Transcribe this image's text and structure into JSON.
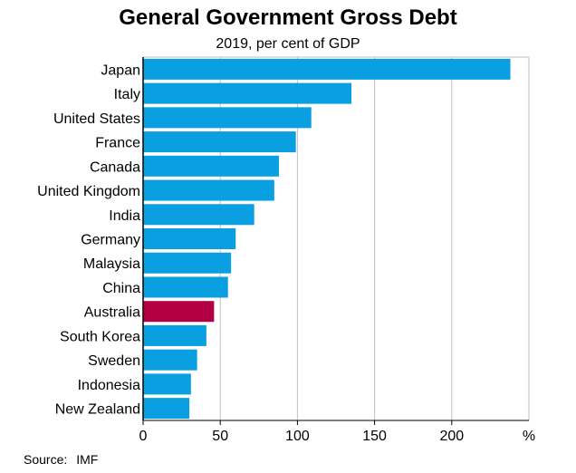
{
  "chart_data": {
    "type": "bar",
    "orientation": "horizontal",
    "title": "General Government Gross Debt",
    "subtitle": "2019, per cent of GDP",
    "categories": [
      "Japan",
      "Italy",
      "United States",
      "France",
      "Canada",
      "United Kingdom",
      "India",
      "Germany",
      "Malaysia",
      "China",
      "Australia",
      "South Korea",
      "Sweden",
      "Indonesia",
      "New Zealand"
    ],
    "values": [
      238,
      135,
      109,
      99,
      88,
      85,
      72,
      60,
      57,
      55,
      46,
      41,
      35,
      31,
      30
    ],
    "highlight": "Australia",
    "xlim": [
      0,
      250
    ],
    "xticks": [
      "0",
      "50",
      "100",
      "150",
      "200"
    ],
    "xtick_values": [
      0,
      50,
      100,
      150,
      200
    ],
    "unit_label": "%",
    "grid": true,
    "colors": {
      "bar": "#0A9FE0",
      "highlight": "#B30045",
      "grid": "#bfbfbf",
      "axis": "#000000"
    }
  },
  "footer": {
    "source_label": "Source:",
    "source_value": "IMF"
  }
}
